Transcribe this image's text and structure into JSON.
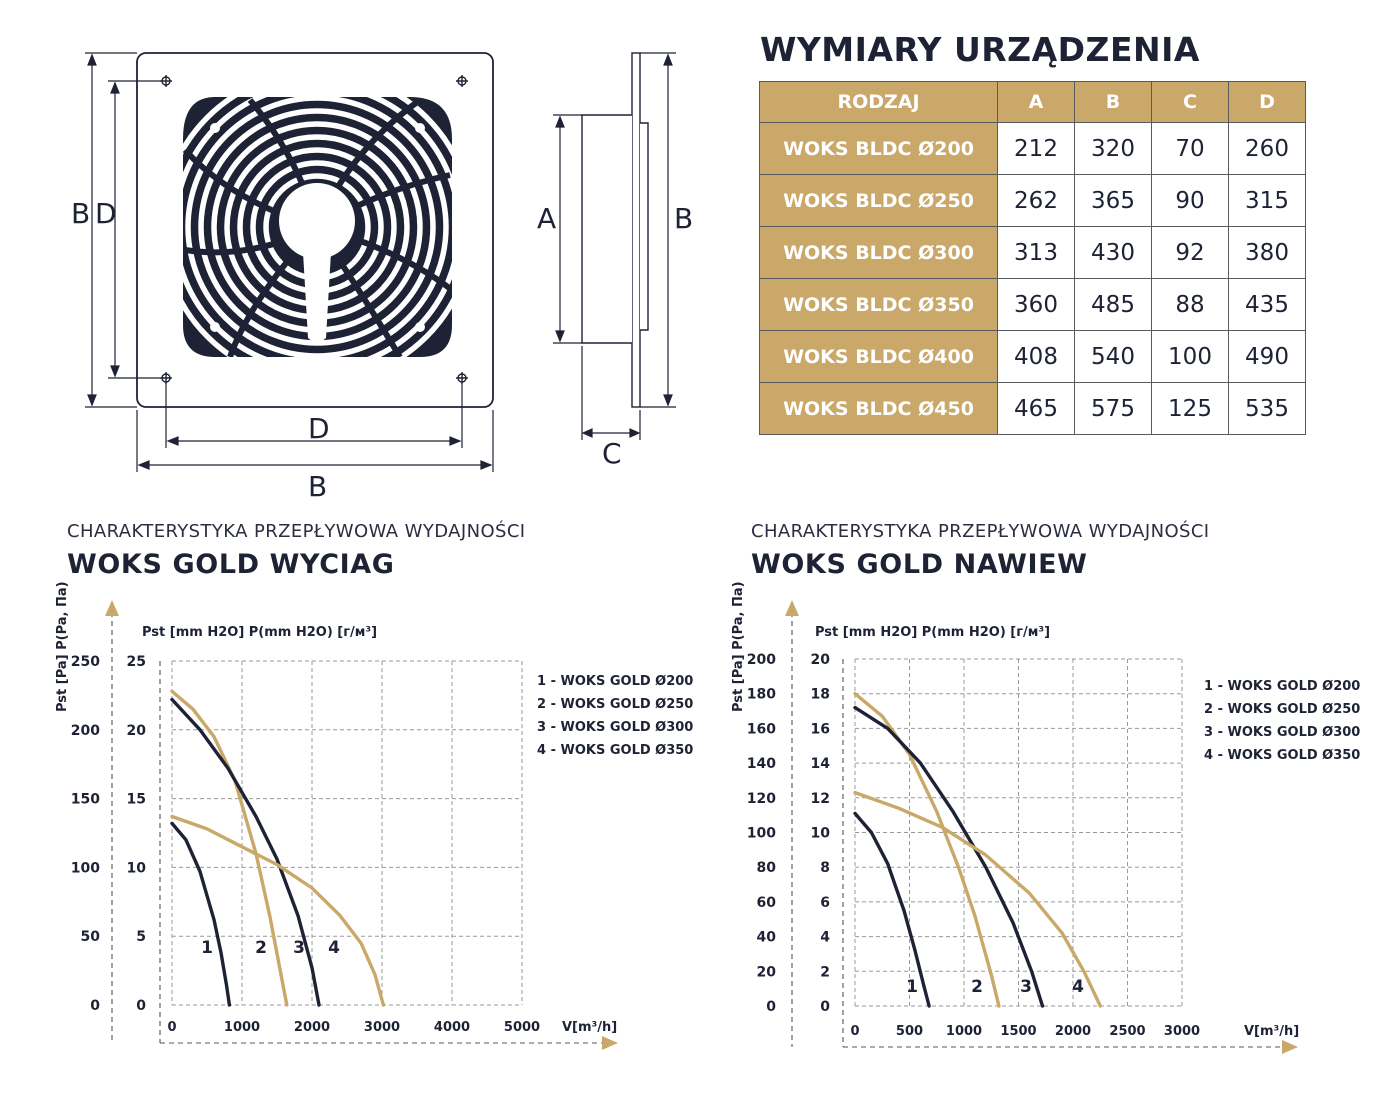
{
  "colors": {
    "navy": "#1e2235",
    "gold": "#c9a869",
    "grid": "#9a9a9a"
  },
  "drawing": {
    "front_labels": {
      "b_vertical": "B",
      "d_vertical": "D",
      "d_horizontal": "D",
      "b_horizontal": "B"
    },
    "side_labels": {
      "a": "A",
      "b": "B",
      "c": "C"
    }
  },
  "table": {
    "heading": "WYMIARY URZĄDZENIA",
    "columns": [
      "RODZAJ",
      "A",
      "B",
      "C",
      "D"
    ],
    "rows": [
      {
        "name": "WOKS BLDC Ø200",
        "values": [
          "212",
          "320",
          "70",
          "260"
        ]
      },
      {
        "name": "WOKS BLDC Ø250",
        "values": [
          "262",
          "365",
          "90",
          "315"
        ]
      },
      {
        "name": "WOKS BLDC Ø300",
        "values": [
          "313",
          "430",
          "92",
          "380"
        ]
      },
      {
        "name": "WOKS BLDC Ø350",
        "values": [
          "360",
          "485",
          "88",
          "435"
        ]
      },
      {
        "name": "WOKS BLDC Ø400",
        "values": [
          "408",
          "540",
          "100",
          "490"
        ]
      },
      {
        "name": "WOKS BLDC Ø450",
        "values": [
          "465",
          "575",
          "125",
          "535"
        ]
      }
    ]
  },
  "chart_data": [
    {
      "type": "line",
      "subtitle": "CHARAKTERYSTYKA PRZEPŁYWOWA WYDAJNOŚCI",
      "title": "WOKS GOLD WYCIAG",
      "y_axis_label": "Pst [Pa] P(Pa, Па)",
      "y2_axis_label": "Pst [mm H2O] P(mm H2O) [г/м³]",
      "xlabel": "V[m³/h]",
      "xlim": [
        0,
        5000
      ],
      "x_ticks": [
        "0",
        "1000",
        "2000",
        "3000",
        "4000",
        "5000"
      ],
      "ylim": [
        0,
        250
      ],
      "y_ticks": [
        "0",
        "50",
        "100",
        "150",
        "200",
        "250"
      ],
      "y2_ticks": [
        "0",
        "5",
        "10",
        "15",
        "20",
        "25"
      ],
      "legend": [
        "1 - WOKS GOLD Ø200",
        "2 - WOKS GOLD Ø250",
        "3 - WOKS GOLD Ø300",
        "4 - WOKS GOLD Ø350"
      ],
      "legend_position": "top-right",
      "grid": true,
      "series": [
        {
          "name": "1",
          "color": "#1e2235",
          "x": [
            0,
            200,
            400,
            600,
            700,
            780,
            820
          ],
          "y": [
            132,
            120,
            97,
            62,
            38,
            14,
            0
          ]
        },
        {
          "name": "2",
          "color": "#c9a869",
          "x": [
            0,
            300,
            600,
            900,
            1200,
            1400,
            1550,
            1640
          ],
          "y": [
            228,
            215,
            195,
            163,
            110,
            64,
            24,
            0
          ]
        },
        {
          "name": "3",
          "color": "#1e2235",
          "x": [
            0,
            400,
            800,
            1200,
            1500,
            1800,
            2000,
            2100
          ],
          "y": [
            222,
            200,
            172,
            137,
            106,
            65,
            27,
            0
          ]
        },
        {
          "name": "4",
          "color": "#c9a869",
          "x": [
            0,
            500,
            1000,
            1500,
            2000,
            2400,
            2700,
            2900,
            3020
          ],
          "y": [
            137,
            128,
            115,
            102,
            85,
            65,
            45,
            22,
            0
          ]
        }
      ]
    },
    {
      "type": "line",
      "subtitle": "CHARAKTERYSTYKA PRZEPŁYWOWA WYDAJNOŚCI",
      "title": "WOKS GOLD NAWIEW",
      "y_axis_label": "Pst [Pa] P(Pa, Па)",
      "y2_axis_label": "Pst [mm H2O] P(mm H2O) [г/м³]",
      "xlabel": "V[m³/h]",
      "xlim": [
        0,
        3000
      ],
      "x_ticks": [
        "0",
        "500",
        "1000",
        "1500",
        "2000",
        "2500",
        "3000"
      ],
      "ylim": [
        0,
        200
      ],
      "y_ticks": [
        "0",
        "20",
        "40",
        "60",
        "80",
        "100",
        "120",
        "140",
        "160",
        "180",
        "200"
      ],
      "y2_ticks": [
        "0",
        "2",
        "4",
        "6",
        "8",
        "10",
        "12",
        "14",
        "16",
        "18",
        "20"
      ],
      "legend": [
        "1 - WOKS GOLD Ø200",
        "2 - WOKS GOLD Ø250",
        "3 - WOKS GOLD Ø300",
        "4 - WOKS GOLD Ø350"
      ],
      "legend_position": "top-right",
      "grid": true,
      "series": [
        {
          "name": "1",
          "color": "#1e2235",
          "x": [
            0,
            150,
            300,
            450,
            550,
            630,
            680
          ],
          "y": [
            111,
            100,
            82,
            55,
            32,
            12,
            0
          ]
        },
        {
          "name": "2",
          "color": "#c9a869",
          "x": [
            0,
            250,
            500,
            750,
            950,
            1100,
            1250,
            1320
          ],
          "y": [
            180,
            167,
            145,
            112,
            80,
            52,
            18,
            0
          ]
        },
        {
          "name": "3",
          "color": "#1e2235",
          "x": [
            0,
            300,
            600,
            900,
            1200,
            1450,
            1620,
            1720
          ],
          "y": [
            172,
            160,
            140,
            112,
            80,
            48,
            20,
            0
          ]
        },
        {
          "name": "4",
          "color": "#c9a869",
          "x": [
            0,
            400,
            800,
            1200,
            1600,
            1900,
            2100,
            2250
          ],
          "y": [
            123,
            114,
            103,
            87,
            65,
            42,
            20,
            0
          ]
        }
      ]
    }
  ]
}
